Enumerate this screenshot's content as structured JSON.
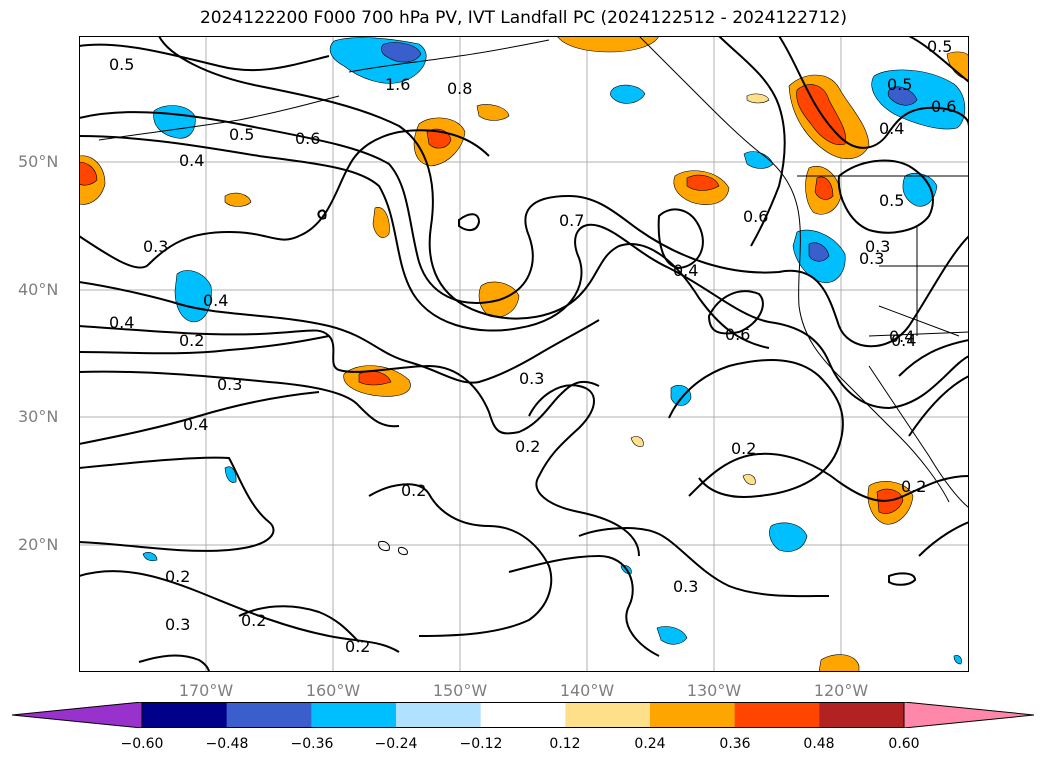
{
  "title": "2024122200 F000 700 hPa PV, IVT Landfall PC (2024122512 - 2024122712)",
  "lat_labels": [
    "50°N",
    "40°N",
    "30°N",
    "20°N"
  ],
  "lon_labels": [
    "170°W",
    "160°W",
    "150°W",
    "140°W",
    "130°W",
    "120°W"
  ],
  "contour_labels": [
    "0.5",
    "0.5",
    "1.6",
    "0.8",
    "0.5",
    "0.6",
    "0.4",
    "0.3",
    "0.7",
    "0.6",
    "0.4",
    "0.3",
    "0.4",
    "0.4",
    "0.2",
    "0.3",
    "0.4",
    "0.3",
    "0.6",
    "0.4",
    "0.2",
    "0.2",
    "0.2",
    "0.2",
    "0.2",
    "0.3",
    "0.3",
    "0.2",
    "0.2",
    "0.5",
    "0.6",
    "0.4",
    "0.5",
    "0.3",
    "0.4"
  ],
  "colorbar": {
    "ticks": [
      "−0.60",
      "−0.48",
      "−0.36",
      "−0.24",
      "−0.12",
      "0.12",
      "0.24",
      "0.36",
      "0.48",
      "0.60"
    ],
    "colors": [
      "#9932cc",
      "#00008b",
      "#3a5fcd",
      "#00bfff",
      "#b0e2ff",
      "#ffffff",
      "#fee08b",
      "#ffa500",
      "#ff4500",
      "#b22222",
      "#ff88aa"
    ],
    "extend": "both"
  },
  "legend_placement": "bottom",
  "grid": true
}
